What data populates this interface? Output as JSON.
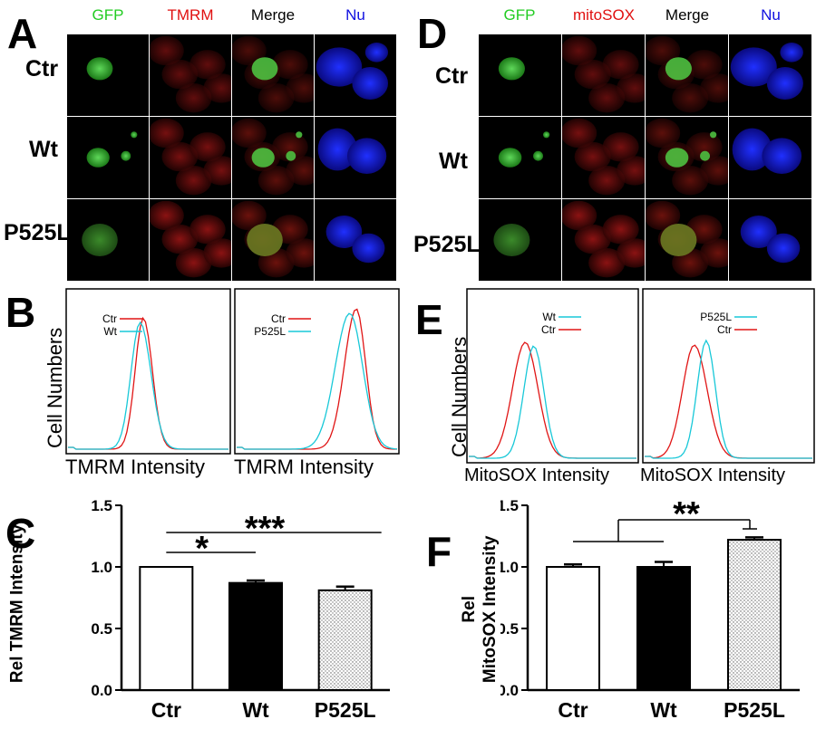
{
  "panels": {
    "A": {
      "letter": "A",
      "columns": [
        {
          "label": "GFP",
          "color": "#22cc22"
        },
        {
          "label": "TMRM",
          "color": "#e01010"
        },
        {
          "label": "Merge",
          "color": "#000000"
        },
        {
          "label": "Nu",
          "color": "#1010e0"
        }
      ],
      "rows": [
        "Ctr",
        "Wt",
        "P525L"
      ]
    },
    "D": {
      "letter": "D",
      "columns": [
        {
          "label": "GFP",
          "color": "#22cc22"
        },
        {
          "label": "mitoSOX",
          "color": "#e01010"
        },
        {
          "label": "Merge",
          "color": "#000000"
        },
        {
          "label": "Nu",
          "color": "#1010e0"
        }
      ],
      "rows": [
        "Ctr",
        "Wt",
        "P525L"
      ]
    },
    "B": {
      "letter": "B",
      "ylabel": "Cell Numbers",
      "xlabel_left": "TMRM Intensity",
      "xlabel_right": "TMRM Intensity",
      "left_legend": [
        {
          "name": "Ctr",
          "color": "#e01515"
        },
        {
          "name": "Wt",
          "color": "#18c8d8"
        }
      ],
      "right_legend": [
        {
          "name": "Ctr",
          "color": "#e01515"
        },
        {
          "name": "P525L",
          "color": "#18c8d8"
        }
      ]
    },
    "E": {
      "letter": "E",
      "ylabel": "Cell Numbers",
      "xlabel_left": "MitoSOX Intensity",
      "xlabel_right": "MitoSOX Intensity",
      "left_legend": [
        {
          "name": "Wt",
          "color": "#18c8d8"
        },
        {
          "name": "Ctr",
          "color": "#e01515"
        }
      ],
      "right_legend": [
        {
          "name": "P525L",
          "color": "#18c8d8"
        },
        {
          "name": "Ctr",
          "color": "#e01515"
        }
      ]
    },
    "C": {
      "letter": "C"
    },
    "F": {
      "letter": "F"
    }
  },
  "chart_data": [
    {
      "type": "bar",
      "panel": "C",
      "ylabel": "Rel TMRM Intensity",
      "categories": [
        "Ctr",
        "Wt",
        "P525L"
      ],
      "values": [
        1.0,
        0.87,
        0.81
      ],
      "errors": [
        0.0,
        0.02,
        0.03
      ],
      "fills": [
        "white",
        "black",
        "dotted"
      ],
      "ylim": [
        0.0,
        1.5
      ],
      "yticks": [
        "0.0",
        "0.5",
        "1.0",
        "1.5"
      ],
      "significance": [
        {
          "label": "*",
          "from": "Ctr",
          "to": "Wt"
        },
        {
          "label": "***",
          "from": "Ctr",
          "to": "P525L"
        }
      ]
    },
    {
      "type": "bar",
      "panel": "F",
      "ylabel_line1": "Rel",
      "ylabel_line2": "MitoSOX Intensity",
      "categories": [
        "Ctr",
        "Wt",
        "P525L"
      ],
      "values": [
        1.0,
        1.0,
        1.22
      ],
      "errors": [
        0.02,
        0.04,
        0.02
      ],
      "fills": [
        "white",
        "black",
        "dotted"
      ],
      "ylim": [
        0.0,
        1.5
      ],
      "yticks": [
        "0.0",
        "0.5",
        "1.0",
        "1.5"
      ],
      "significance": [
        {
          "label": "**",
          "from": "Ctr+Wt",
          "to": "P525L"
        }
      ]
    }
  ]
}
